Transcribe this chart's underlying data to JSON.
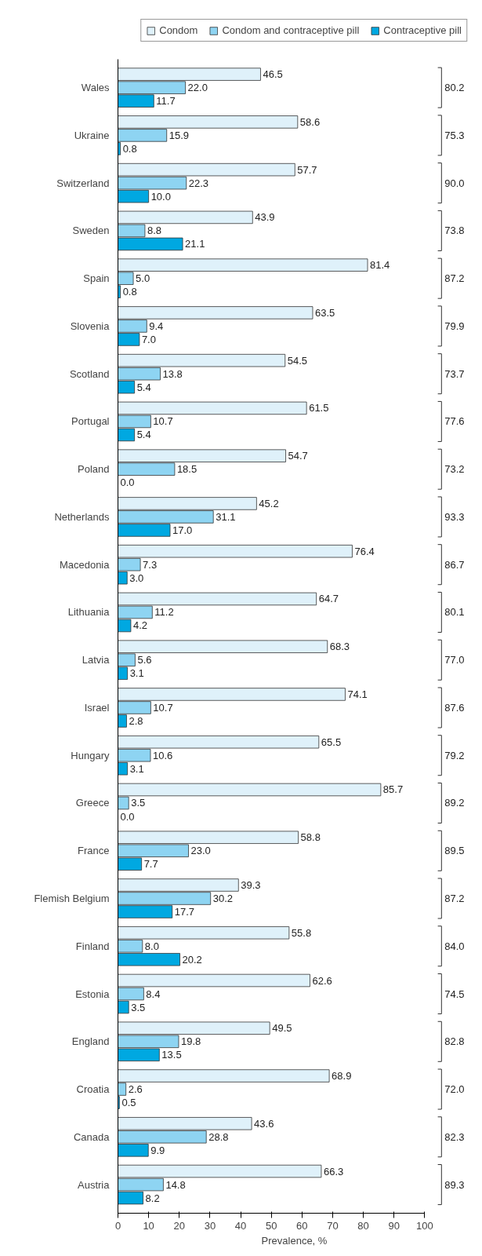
{
  "chart_data": {
    "type": "bar",
    "orientation": "horizontal",
    "xlabel": "Prevalence, %",
    "categories": [
      "Wales",
      "Ukraine",
      "Switzerland",
      "Sweden",
      "Spain",
      "Slovenia",
      "Scotland",
      "Portugal",
      "Poland",
      "Netherlands",
      "Macedonia",
      "Lithuania",
      "Latvia",
      "Israel",
      "Hungary",
      "Greece",
      "France",
      "Flemish Belgium",
      "Finland",
      "Estonia",
      "England",
      "Croatia",
      "Canada",
      "Austria"
    ],
    "series": [
      {
        "name": "Condom",
        "color": "#dff1fa",
        "values": [
          46.5,
          58.6,
          57.7,
          43.9,
          81.4,
          63.5,
          54.5,
          61.5,
          54.7,
          45.2,
          76.4,
          64.7,
          68.3,
          74.1,
          65.5,
          85.7,
          58.8,
          39.3,
          55.8,
          62.6,
          49.5,
          68.9,
          43.6,
          66.3
        ],
        "value_labels": [
          "46.5",
          "58.6",
          "57.7",
          "43.9",
          "81.4",
          "63.5",
          "54.5",
          "61.5",
          "54.7",
          "45.2",
          "76.4",
          "64.7",
          "68.3",
          "74.1",
          "65.5",
          "85.7",
          "58.8",
          "39.3",
          "55.8",
          "62.6",
          "49.5",
          "68.9",
          "43.6",
          "66.3"
        ]
      },
      {
        "name": "Condom and contraceptive pill",
        "color": "#8ed4f2",
        "values": [
          22.0,
          15.9,
          22.3,
          8.8,
          5.0,
          9.4,
          13.8,
          10.7,
          18.5,
          31.1,
          7.3,
          11.2,
          5.6,
          10.7,
          10.6,
          3.5,
          23.0,
          30.2,
          8.0,
          8.4,
          19.8,
          2.6,
          28.8,
          14.8
        ],
        "value_labels": [
          "22.0",
          "15.9",
          "22.3",
          "8.8",
          "5.0",
          "9.4",
          "13.8",
          "10.7",
          "18.5",
          "31.1",
          "7.3",
          "11.2",
          "5.6",
          "10.7",
          "10.6",
          "3.5",
          "23.0",
          "30.2",
          "8.0",
          "8.4",
          "19.8",
          "2.6",
          "28.8",
          "14.8"
        ]
      },
      {
        "name": "Contraceptive pill",
        "color": "#00a8e1",
        "values": [
          11.7,
          0.8,
          10.0,
          21.1,
          0.8,
          7.0,
          5.4,
          5.4,
          0.0,
          17.0,
          3.0,
          4.2,
          3.1,
          2.8,
          3.1,
          0.0,
          7.7,
          17.7,
          20.2,
          3.5,
          13.5,
          0.5,
          9.9,
          8.2
        ],
        "value_labels": [
          "11.7",
          "0.8",
          "10.0",
          "21.1",
          "0.8",
          "7.0",
          "5.4",
          "5.4",
          "0.0",
          "17.0",
          "3.0",
          "4.2",
          "3.1",
          "2.8",
          "3.1",
          "0.0",
          "7.7",
          "17.7",
          "20.2",
          "3.5",
          "13.5",
          "0.5",
          "9.9",
          "8.2"
        ]
      }
    ],
    "annotations": [
      "80.2",
      "75.3",
      "90.0",
      "73.8",
      "87.2",
      "79.9",
      "73.7",
      "77.6",
      "73.2",
      "93.3",
      "86.7",
      "80.1",
      "77.0",
      "87.6",
      "79.2",
      "89.2",
      "89.5",
      "87.2",
      "84.0",
      "74.5",
      "82.8",
      "72.0",
      "82.3",
      "89.3"
    ],
    "xlim": [
      0,
      100
    ],
    "xticks": [
      0,
      10,
      20,
      30,
      40,
      50,
      60,
      70,
      80,
      90,
      100
    ],
    "grid": false,
    "legend": "top"
  }
}
